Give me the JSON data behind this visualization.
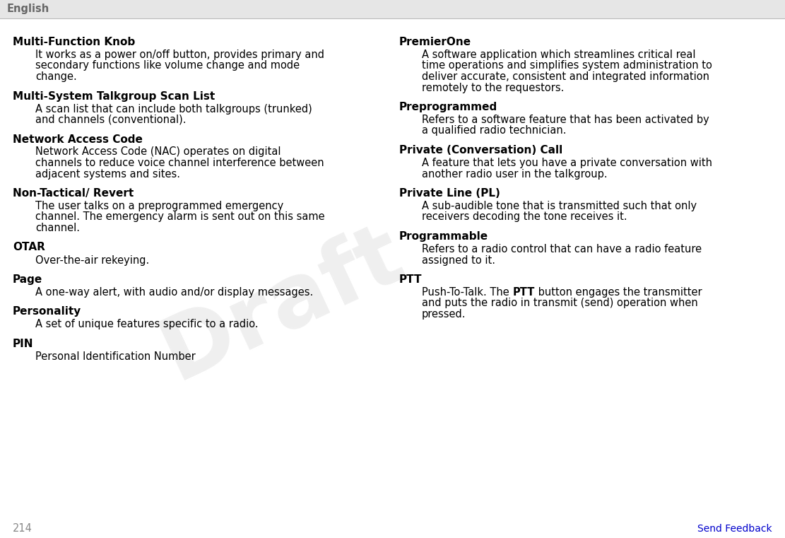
{
  "header_text": "English",
  "header_bg": "#e6e6e6",
  "header_text_color": "#666666",
  "page_bg": "#ffffff",
  "body_text_color": "#000000",
  "footer_page": "214",
  "footer_link": "Send Feedback",
  "footer_link_color": "#0000cc",
  "draft_watermark": "Draft",
  "watermark_color": "#cccccc",
  "col1_entries": [
    {
      "term": "Multi-Function Knob",
      "definition": "It works as a power on/off button, provides primary and\nsecondary functions like volume change and mode\nchange."
    },
    {
      "term": "Multi-System Talkgroup Scan List",
      "definition": "A scan list that can include both talkgroups (trunked)\nand channels (conventional)."
    },
    {
      "term": "Network Access Code",
      "definition": "Network Access Code (NAC) operates on digital\nchannels to reduce voice channel interference between\nadjacent systems and sites."
    },
    {
      "term": "Non-Tactical/ Revert",
      "definition": "The user talks on a preprogrammed emergency\nchannel. The emergency alarm is sent out on this same\nchannel."
    },
    {
      "term": "OTAR",
      "definition": "Over-the-air rekeying."
    },
    {
      "term": "Page",
      "definition": "A one-way alert, with audio and/or display messages."
    },
    {
      "term": "Personality",
      "definition": "A set of unique features specific to a radio."
    },
    {
      "term": "PIN",
      "definition": "Personal Identification Number"
    }
  ],
  "col2_entries": [
    {
      "term": "PremierOne",
      "definition": "A software application which streamlines critical real\ntime operations and simplifies system administration to\ndeliver accurate, consistent and integrated information\nremotely to the requestors."
    },
    {
      "term": "Preprogrammed",
      "definition": "Refers to a software feature that has been activated by\na qualified radio technician."
    },
    {
      "term": "Private (Conversation) Call",
      "definition": "A feature that lets you have a private conversation with\nanother radio user in the talkgroup."
    },
    {
      "term": "Private Line (PL)",
      "definition": "A sub-audible tone that is transmitted such that only\nreceivers decoding the tone receives it."
    },
    {
      "term": "Programmable",
      "definition": "Refers to a radio control that can have a radio feature\nassigned to it."
    },
    {
      "term": "PTT",
      "definition_parts": [
        {
          "text": "Push-To-Talk. The ",
          "bold": false
        },
        {
          "text": "PTT",
          "bold": true
        },
        {
          "text": " button engages the transmitter\nand puts the radio in transmit (send) operation when\npressed.",
          "bold": false
        }
      ]
    }
  ],
  "fig_width": 11.11,
  "fig_height": 7.61,
  "dpi": 100
}
